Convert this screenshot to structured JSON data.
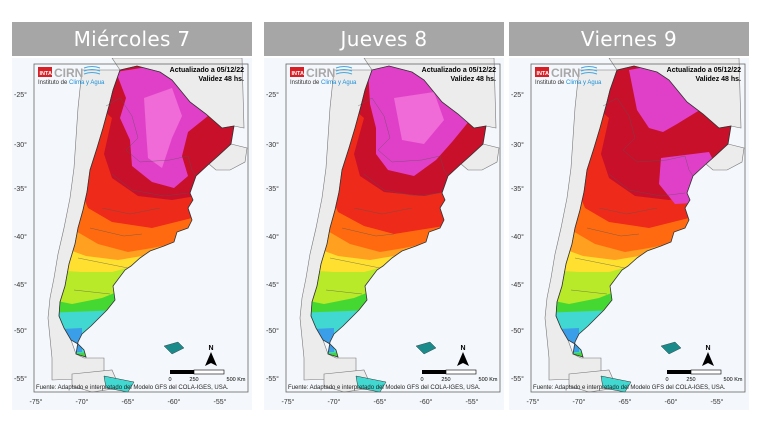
{
  "panels": [
    {
      "day": "Miércoles 7",
      "variant": 0
    },
    {
      "day": "Jueves 8",
      "variant": 1
    },
    {
      "day": "Viernes 9",
      "variant": 2
    }
  ],
  "logo": {
    "badge": "INTA",
    "name": "CIRN",
    "subtitle_prefix": "Instituto de ",
    "subtitle_highlight": "Clima y Agua"
  },
  "update": {
    "line1": "Actualizado a 05/12/22",
    "line2": "Validez 48 hs."
  },
  "scale": {
    "zero": "0",
    "mid": "250",
    "end": "500 Km",
    "north": "N"
  },
  "source": "Fuente: Adaptado e interpretado del Modelo GFS del COLA-IGES, USA.",
  "lat_labels": [
    "-25°",
    "-30°",
    "-35°",
    "-40°",
    "-45°",
    "-50°",
    "-55°"
  ],
  "lon_labels": [
    "-75°",
    "-70°",
    "-65°",
    "-60°",
    "-55°"
  ],
  "colors": {
    "magenta": "#e040c8",
    "pink": "#f06ad8",
    "dark_red": "#c8102a",
    "red": "#ee2a1a",
    "orange": "#ff6a10",
    "orange_light": "#ffa020",
    "yellow": "#ffe030",
    "yellow_green": "#b8ea2a",
    "green": "#46d832",
    "cyan": "#40d8d0",
    "blue": "#3a9ee8"
  }
}
